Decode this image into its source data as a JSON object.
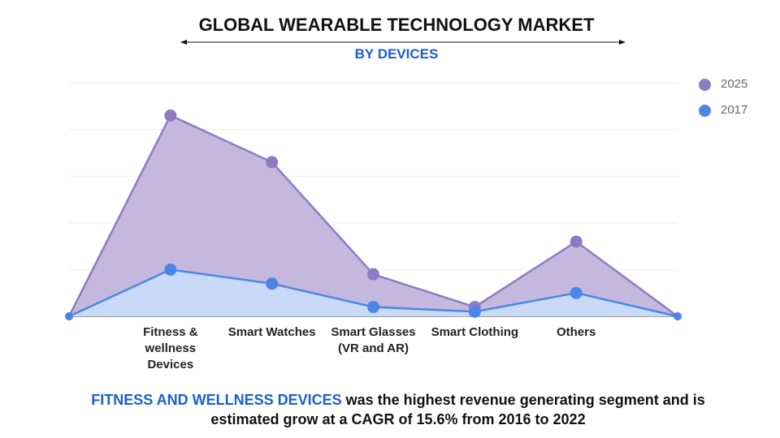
{
  "chart_data": {
    "type": "area",
    "title": "GLOBAL WEARABLE TECHNOLOGY MARKET",
    "subtitle": "BY DEVICES",
    "categories": [
      "Fitness & wellness Devices",
      "Smart Watches",
      "Smart Glasses (VR and AR)",
      "Smart Clothing",
      "Others"
    ],
    "category_lines": [
      [
        "Fitness &",
        "wellness",
        "Devices"
      ],
      [
        "Smart Watches"
      ],
      [
        "Smart Glasses",
        "(VR and AR)"
      ],
      [
        "Smart Clothing"
      ],
      [
        "Others"
      ]
    ],
    "series": [
      {
        "name": "2025",
        "values": [
          4.3,
          3.3,
          0.9,
          0.2,
          1.6
        ],
        "color": "#8e7cc3",
        "fill": "#c4b8de"
      },
      {
        "name": "2017",
        "values": [
          1.0,
          0.7,
          0.2,
          0.1,
          0.5
        ],
        "color": "#4a86e8",
        "fill": "#c9daf8"
      }
    ],
    "edge_values": [
      0,
      0
    ],
    "ylim": [
      0,
      5
    ],
    "grid": true,
    "legend": "top-right",
    "xlabel": "",
    "ylabel": ""
  },
  "footer": {
    "highlight": "FITNESS AND WELLNESS DEVICES",
    "text1": " was the highest revenue generating segment and is",
    "text2": "estimated grow at a CAGR of 15.6% from 2016 to 2022"
  }
}
